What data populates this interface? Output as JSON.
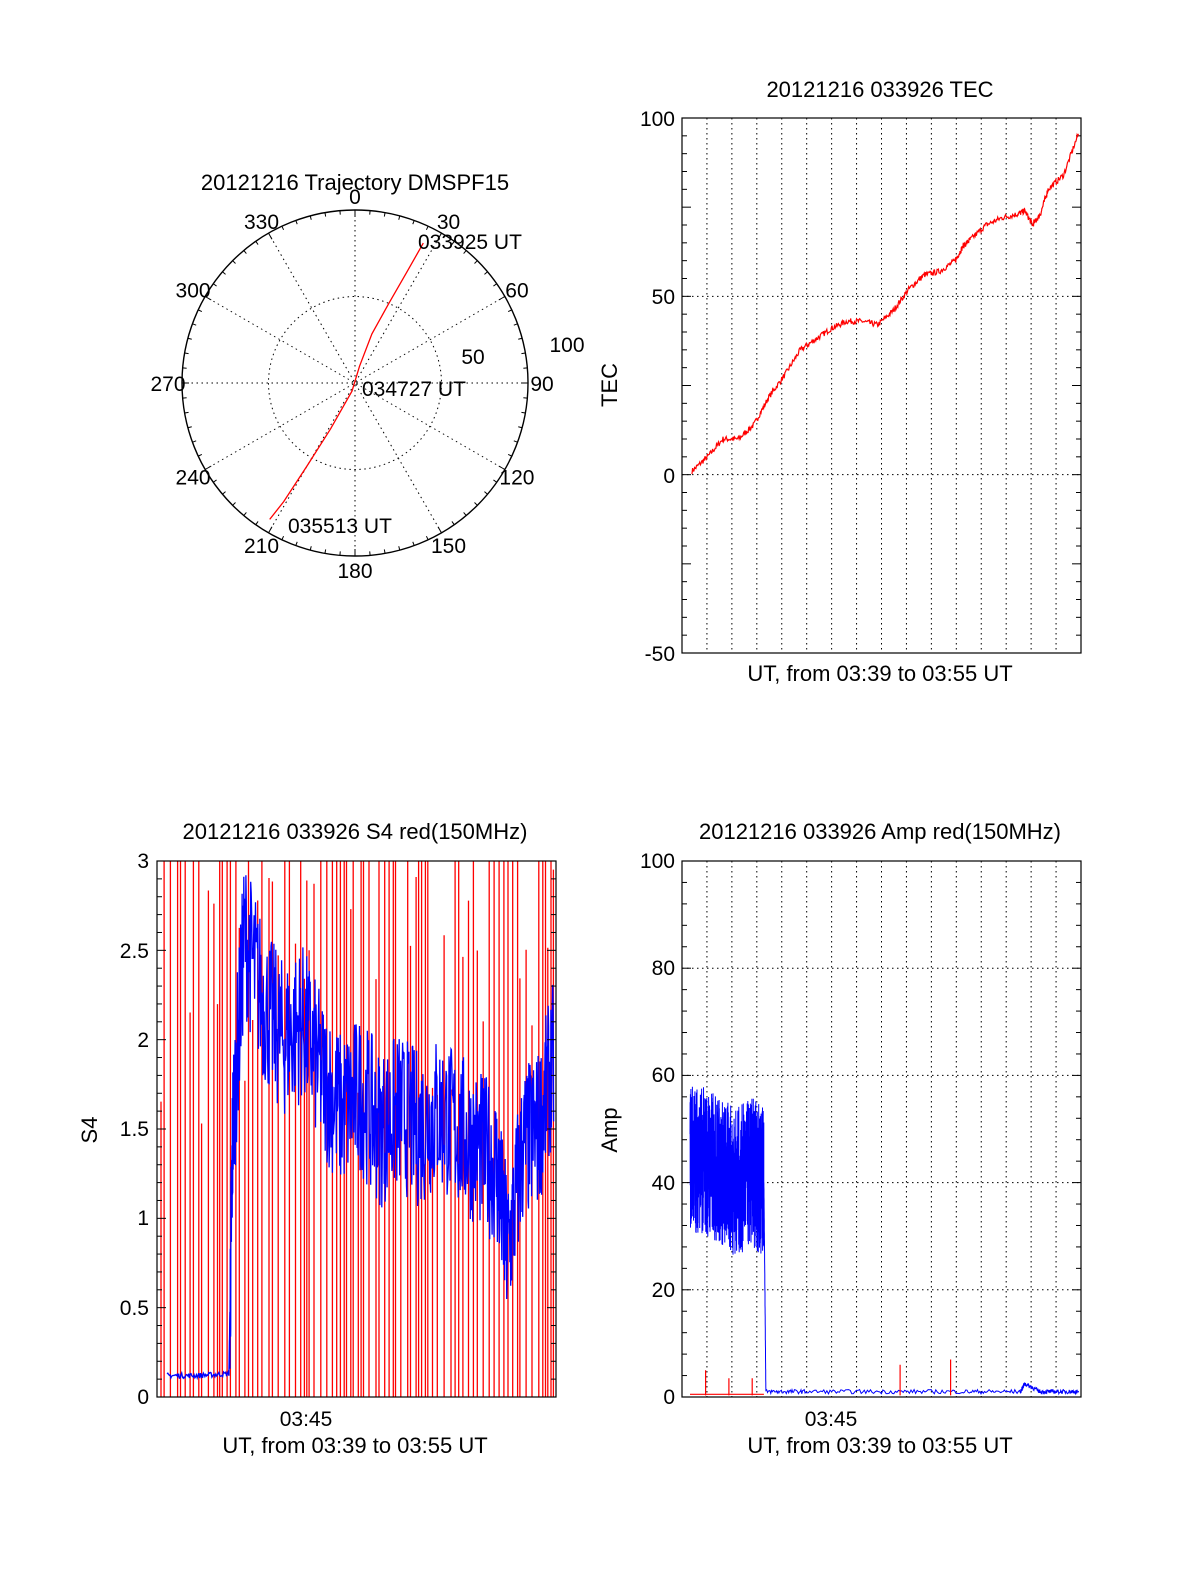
{
  "colors": {
    "red": "#ff0000",
    "blue": "#0000ff",
    "axis": "#000000"
  },
  "chart_data": [
    {
      "id": "polar",
      "type": "polar",
      "title": "20121216 Trajectory DMSPF15",
      "azimuth_labels": [
        "0",
        "30",
        "60",
        "90",
        "120",
        "150",
        "180",
        "210",
        "240",
        "270",
        "300",
        "330"
      ],
      "radial_labels": [
        "50",
        "100"
      ],
      "radial_range": [
        0,
        100
      ],
      "grid": true,
      "series": [
        {
          "color": "red",
          "points": [
            {
              "az": 26,
              "r": 90
            },
            {
              "az": 25,
              "r": 70
            },
            {
              "az": 23,
              "r": 50
            },
            {
              "az": 19,
              "r": 30
            },
            {
              "az": 15,
              "r": 10
            },
            {
              "az": 200,
              "r": 5
            },
            {
              "az": 208,
              "r": 30
            },
            {
              "az": 210,
              "r": 55
            },
            {
              "az": 211,
              "r": 80
            },
            {
              "az": 212,
              "r": 93
            }
          ]
        }
      ],
      "annotations": [
        {
          "text": "033925 UT",
          "az": 26,
          "r": 90
        },
        {
          "text": "034727 UT",
          "az": 80,
          "r": 8
        },
        {
          "text": "035513 UT",
          "az": 200,
          "r": 88
        }
      ]
    },
    {
      "id": "tec",
      "type": "line",
      "title": "20121216 033926 TEC",
      "ylabel": "TEC",
      "xlabel": "UT, from 03:39 to 03:55 UT",
      "ylim": [
        -50,
        100
      ],
      "yticks": [
        "100",
        "50",
        "0",
        "-50"
      ],
      "grid": true,
      "series": [
        {
          "color": "red",
          "x": [
            0,
            0.04,
            0.08,
            0.12,
            0.16,
            0.2,
            0.24,
            0.28,
            0.32,
            0.36,
            0.4,
            0.44,
            0.48,
            0.52,
            0.56,
            0.6,
            0.64,
            0.68,
            0.7,
            0.72,
            0.76,
            0.8,
            0.84,
            0.86,
            0.88,
            0.9,
            0.92,
            0.96,
            1
          ],
          "y": [
            1,
            5,
            10,
            10,
            14,
            22,
            28,
            35,
            38,
            41,
            43,
            43,
            42,
            46,
            52,
            56,
            57,
            60,
            64,
            66,
            70,
            72,
            73,
            74,
            70,
            73,
            80,
            84,
            96
          ]
        }
      ]
    },
    {
      "id": "s4",
      "type": "line",
      "title": "20121216 033926 S4 red(150MHz)",
      "ylabel": "S4",
      "xlabel": "UT, from 03:39 to 03:55 UT",
      "xtick_label": "03:45",
      "ylim": [
        0,
        3
      ],
      "yticks": [
        "3",
        "2.5",
        "2",
        "1.5",
        "1",
        "0.5",
        "0"
      ],
      "grid": false,
      "series": [
        {
          "color": "red",
          "style": "dense-spikes",
          "range": [
            0,
            3
          ]
        },
        {
          "color": "blue",
          "x": [
            0,
            0.08,
            0.16,
            0.17,
            0.2,
            0.25,
            0.3,
            0.35,
            0.4,
            0.45,
            0.5,
            0.55,
            0.6,
            0.65,
            0.7,
            0.75,
            0.8,
            0.85,
            0.88,
            0.92,
            0.96,
            1
          ],
          "y": [
            0.12,
            0.12,
            0.13,
            1.5,
            2.6,
            2.2,
            2.0,
            2.1,
            1.8,
            1.6,
            1.7,
            1.5,
            1.6,
            1.5,
            1.6,
            1.5,
            1.4,
            1.3,
            0.8,
            1.4,
            1.5,
            1.9
          ]
        }
      ]
    },
    {
      "id": "amp",
      "type": "line",
      "title": "20121216 033926 Amp red(150MHz)",
      "ylabel": "Amp",
      "xlabel": "UT, from 03:39 to 03:55 UT",
      "xtick_label": "03:45",
      "ylim": [
        0,
        100
      ],
      "yticks": [
        "100",
        "80",
        "60",
        "40",
        "20",
        "0"
      ],
      "grid": true,
      "series": [
        {
          "color": "blue",
          "x": [
            0,
            0.04,
            0.08,
            0.12,
            0.16,
            0.19,
            0.195,
            0.3,
            0.5,
            0.7,
            0.85,
            0.86,
            0.9,
            0.95,
            1
          ],
          "y": [
            45,
            44,
            42,
            40,
            42,
            40,
            1,
            1,
            1,
            1,
            1,
            2.5,
            1,
            1,
            1
          ]
        },
        {
          "color": "red",
          "x": [
            0,
            0.19,
            0.2,
            1
          ],
          "y": [
            0.5,
            0.5,
            0.3,
            0.3
          ],
          "spikes": [
            {
              "x": 0.04,
              "y": 5
            },
            {
              "x": 0.1,
              "y": 3.5
            },
            {
              "x": 0.16,
              "y": 3.5
            },
            {
              "x": 0.54,
              "y": 6
            },
            {
              "x": 0.67,
              "y": 7
            }
          ]
        }
      ]
    }
  ]
}
